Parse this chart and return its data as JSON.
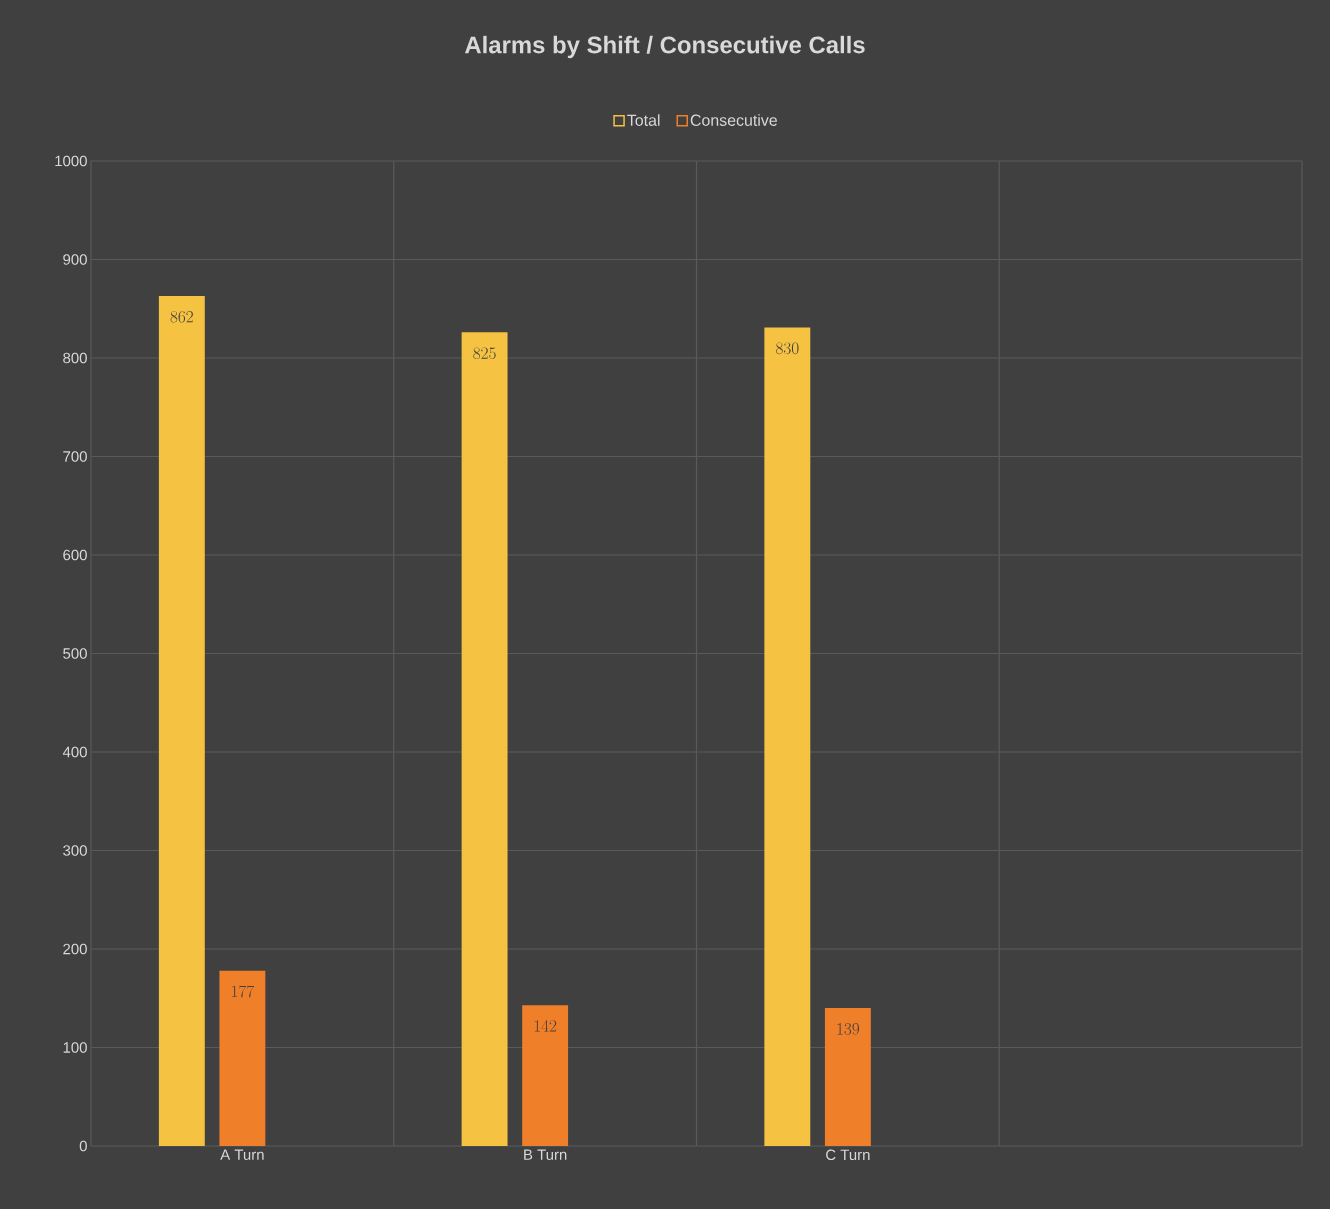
{
  "chart_data": {
    "type": "bar",
    "title": "Alarms by Shift / Consecutive Calls",
    "categories": [
      "A Turn",
      "B Turn",
      "C Turn",
      null
    ],
    "series": [
      {
        "name": "Total",
        "color": "#f5c242",
        "values": [
          862,
          825,
          830,
          null
        ]
      },
      {
        "name": "Consecutive",
        "color": "#f07f2a",
        "values": [
          177,
          142,
          139,
          null
        ]
      }
    ],
    "ylim": [
      0,
      1000
    ],
    "yticks": [
      0,
      100,
      200,
      300,
      400,
      500,
      600,
      700,
      800,
      900,
      1000
    ],
    "grid": true,
    "legend": "top",
    "data_labels": true
  }
}
